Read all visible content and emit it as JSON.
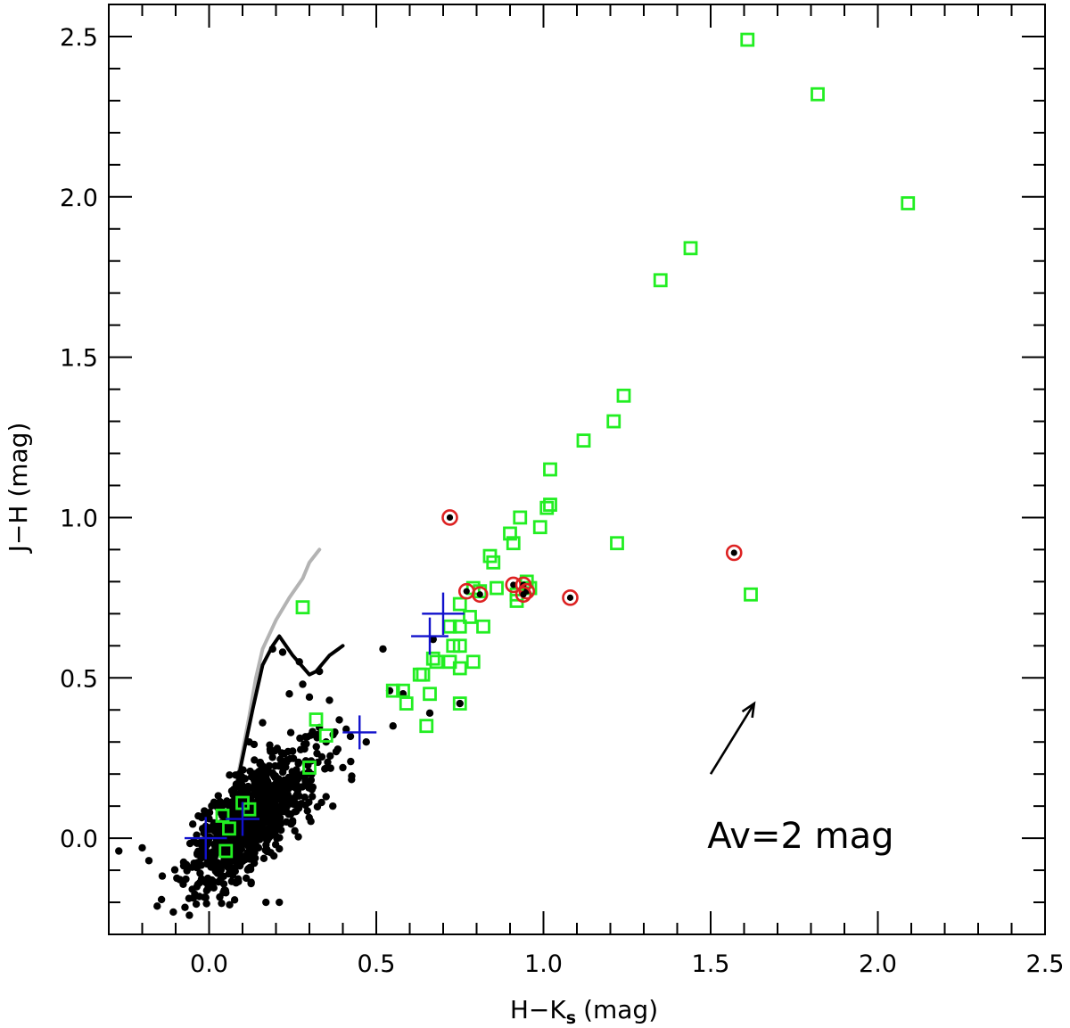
{
  "chart_data": {
    "type": "scatter",
    "title": "",
    "xlabel": "H−K",
    "xlabel_sub": "s",
    "xlabel_unit": "(mag)",
    "ylabel": "J−H  (mag)",
    "xlim": [
      -0.3,
      2.5
    ],
    "ylim": [
      -0.3,
      2.6
    ],
    "x_ticks": [
      {
        "value": 0.0,
        "label": "0.0"
      },
      {
        "value": 0.5,
        "label": "0.5"
      },
      {
        "value": 1.0,
        "label": "1.0"
      },
      {
        "value": 1.5,
        "label": "1.5"
      },
      {
        "value": 2.0,
        "label": "2.0"
      },
      {
        "value": 2.5,
        "label": "2.5"
      }
    ],
    "y_ticks": [
      {
        "value": 0.0,
        "label": "0.0"
      },
      {
        "value": 0.5,
        "label": "0.5"
      },
      {
        "value": 1.0,
        "label": "1.0"
      },
      {
        "value": 1.5,
        "label": "1.5"
      },
      {
        "value": 2.0,
        "label": "2.0"
      },
      {
        "value": 2.5,
        "label": "2.5"
      }
    ],
    "x_minor_step": 0.1,
    "y_minor_step": 0.1,
    "annotation": {
      "text": "Av=2  mag",
      "x": 1.49,
      "y": -0.03
    },
    "reddening_vector": {
      "from": [
        1.5,
        0.2
      ],
      "to": [
        1.63,
        0.42
      ],
      "color": "#000000"
    },
    "series": [
      {
        "name": "field stars",
        "marker": "dot",
        "color": "#000000",
        "seed": 7,
        "cloud": {
          "count": 900,
          "cx": 0.13,
          "cy": 0.06,
          "slope": 0.8,
          "sx": 0.095,
          "sy": 0.075
        },
        "points": [
          [
            0.19,
            0.59
          ],
          [
            0.22,
            0.58
          ],
          [
            0.27,
            0.55
          ],
          [
            0.33,
            0.52
          ],
          [
            0.28,
            0.48
          ],
          [
            0.24,
            0.45
          ],
          [
            0.3,
            0.44
          ],
          [
            0.36,
            0.43
          ],
          [
            0.52,
            0.59
          ],
          [
            0.54,
            0.46
          ],
          [
            0.58,
            0.45
          ],
          [
            0.55,
            0.35
          ],
          [
            0.47,
            0.3
          ],
          [
            0.41,
            0.34
          ],
          [
            0.38,
            0.27
          ],
          [
            0.35,
            0.3
          ],
          [
            0.4,
            0.22
          ],
          [
            0.21,
            -0.2
          ],
          [
            0.17,
            -0.2
          ],
          [
            -0.27,
            -0.04
          ],
          [
            -0.18,
            -0.07
          ],
          [
            -0.2,
            -0.03
          ],
          [
            0.66,
            0.39
          ],
          [
            0.67,
            0.62
          ],
          [
            0.75,
            0.42
          ],
          [
            0.12,
            0.3
          ],
          [
            0.16,
            0.36
          ],
          [
            0.09,
            0.2
          ],
          [
            0.37,
            0.1
          ],
          [
            0.05,
            -0.17
          ]
        ]
      },
      {
        "name": "sources with excess",
        "marker": "open-square",
        "color": "#22ee22",
        "points": [
          [
            1.61,
            2.49
          ],
          [
            1.82,
            2.32
          ],
          [
            2.09,
            1.98
          ],
          [
            1.44,
            1.84
          ],
          [
            1.35,
            1.74
          ],
          [
            1.24,
            1.38
          ],
          [
            1.21,
            1.3
          ],
          [
            1.12,
            1.24
          ],
          [
            1.02,
            1.15
          ],
          [
            1.02,
            1.04
          ],
          [
            1.01,
            1.03
          ],
          [
            0.93,
            1.0
          ],
          [
            0.9,
            0.95
          ],
          [
            0.91,
            0.92
          ],
          [
            0.99,
            0.97
          ],
          [
            0.84,
            0.88
          ],
          [
            0.85,
            0.86
          ],
          [
            0.81,
            0.77
          ],
          [
            0.79,
            0.78
          ],
          [
            0.86,
            0.78
          ],
          [
            0.92,
            0.76
          ],
          [
            0.92,
            0.74
          ],
          [
            0.95,
            0.8
          ],
          [
            0.96,
            0.78
          ],
          [
            0.75,
            0.73
          ],
          [
            0.78,
            0.69
          ],
          [
            0.72,
            0.66
          ],
          [
            0.75,
            0.66
          ],
          [
            0.73,
            0.6
          ],
          [
            0.75,
            0.6
          ],
          [
            0.82,
            0.66
          ],
          [
            0.67,
            0.56
          ],
          [
            0.68,
            0.55
          ],
          [
            0.72,
            0.55
          ],
          [
            0.75,
            0.53
          ],
          [
            0.79,
            0.55
          ],
          [
            0.63,
            0.51
          ],
          [
            0.64,
            0.51
          ],
          [
            0.55,
            0.46
          ],
          [
            0.58,
            0.46
          ],
          [
            0.59,
            0.42
          ],
          [
            0.66,
            0.45
          ],
          [
            0.75,
            0.42
          ],
          [
            0.65,
            0.35
          ],
          [
            1.22,
            0.92
          ],
          [
            1.62,
            0.76
          ],
          [
            0.28,
            0.72
          ],
          [
            0.32,
            0.37
          ],
          [
            0.35,
            0.32
          ],
          [
            0.3,
            0.22
          ],
          [
            0.1,
            0.11
          ],
          [
            0.12,
            0.09
          ],
          [
            0.04,
            0.07
          ],
          [
            0.06,
            0.03
          ],
          [
            0.05,
            -0.04
          ]
        ]
      },
      {
        "name": "circled sources",
        "marker": "dot-in-circle",
        "color": "#dd2222",
        "points": [
          [
            0.72,
            1.0
          ],
          [
            1.57,
            0.89
          ],
          [
            0.77,
            0.77
          ],
          [
            0.81,
            0.76
          ],
          [
            0.91,
            0.79
          ],
          [
            0.94,
            0.79
          ],
          [
            0.95,
            0.77
          ],
          [
            0.94,
            0.76
          ],
          [
            1.08,
            0.75
          ]
        ]
      },
      {
        "name": "cross markers",
        "marker": "cross",
        "color": "#1111cc",
        "points": [
          [
            0.7,
            0.7,
            1.25
          ],
          [
            0.66,
            0.63,
            1.1
          ],
          [
            0.45,
            0.33,
            1.0
          ],
          [
            0.1,
            0.06,
            1.0
          ],
          [
            -0.01,
            0.0,
            1.25
          ]
        ]
      }
    ],
    "lines": [
      {
        "name": "giant branch",
        "color": "#b3b3b3",
        "points": [
          [
            0.08,
            0.16
          ],
          [
            0.1,
            0.27
          ],
          [
            0.12,
            0.38
          ],
          [
            0.14,
            0.5
          ],
          [
            0.16,
            0.59
          ],
          [
            0.2,
            0.68
          ],
          [
            0.24,
            0.75
          ],
          [
            0.28,
            0.81
          ],
          [
            0.3,
            0.86
          ],
          [
            0.33,
            0.9
          ]
        ]
      },
      {
        "name": "dwarf branch",
        "color": "#000000",
        "points": [
          [
            0.07,
            0.11
          ],
          [
            0.09,
            0.2
          ],
          [
            0.11,
            0.3
          ],
          [
            0.13,
            0.4
          ],
          [
            0.16,
            0.54
          ],
          [
            0.19,
            0.6
          ],
          [
            0.21,
            0.63
          ],
          [
            0.25,
            0.57
          ],
          [
            0.3,
            0.51
          ],
          [
            0.32,
            0.52
          ],
          [
            0.36,
            0.57
          ],
          [
            0.4,
            0.6
          ]
        ]
      }
    ]
  }
}
